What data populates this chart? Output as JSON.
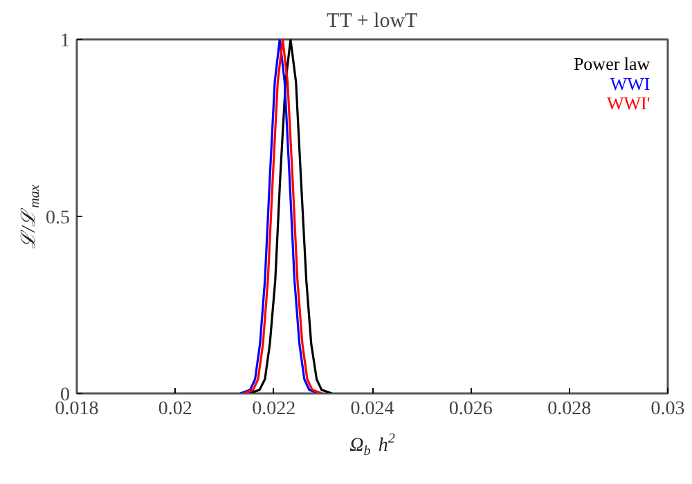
{
  "chart_data": {
    "type": "line",
    "title": "TT + lowT",
    "xlabel": "Ω$_{b}$ h$^{2}$",
    "ylabel": "ℒ/ℒ$_{max}$",
    "xlim": [
      0.018,
      0.03
    ],
    "ylim": [
      0,
      1
    ],
    "xticks": [
      0.018,
      0.02,
      0.022,
      0.024,
      0.026,
      0.028,
      0.03
    ],
    "yticks": [
      0,
      0.5,
      1
    ],
    "grid": false,
    "legend": "top right",
    "line_style": "solid",
    "marker": "none",
    "series": [
      {
        "name": "Power law",
        "color": "#000000",
        "x": [
          0.0215,
          0.02171,
          0.02182,
          0.02192,
          0.02203,
          0.02213,
          0.02224,
          0.02234,
          0.02245,
          0.02255,
          0.02266,
          0.02276,
          0.02287,
          0.02297,
          0.02318
        ],
        "values": [
          0,
          0.01,
          0.04,
          0.14,
          0.32,
          0.61,
          0.88,
          1,
          0.88,
          0.61,
          0.32,
          0.14,
          0.04,
          0.01,
          0
        ]
      },
      {
        "name": "WWI",
        "color": "#0000ff",
        "x": [
          0.02132,
          0.02152,
          0.02162,
          0.02172,
          0.02182,
          0.02192,
          0.02202,
          0.02212,
          0.02222,
          0.02232,
          0.02242,
          0.02252,
          0.02262,
          0.02272,
          0.02292
        ],
        "values": [
          0,
          0.01,
          0.04,
          0.14,
          0.32,
          0.61,
          0.88,
          1,
          0.88,
          0.61,
          0.32,
          0.14,
          0.04,
          0.01,
          0
        ]
      },
      {
        "name": "WWI'",
        "color": "#ff0000",
        "x": [
          0.02138,
          0.02158,
          0.02168,
          0.02178,
          0.02188,
          0.02198,
          0.02208,
          0.02218,
          0.02228,
          0.02238,
          0.02248,
          0.02258,
          0.02268,
          0.02278,
          0.02298
        ],
        "values": [
          0,
          0.01,
          0.04,
          0.14,
          0.32,
          0.61,
          0.88,
          1,
          0.88,
          0.61,
          0.32,
          0.14,
          0.04,
          0.01,
          0
        ]
      }
    ]
  }
}
